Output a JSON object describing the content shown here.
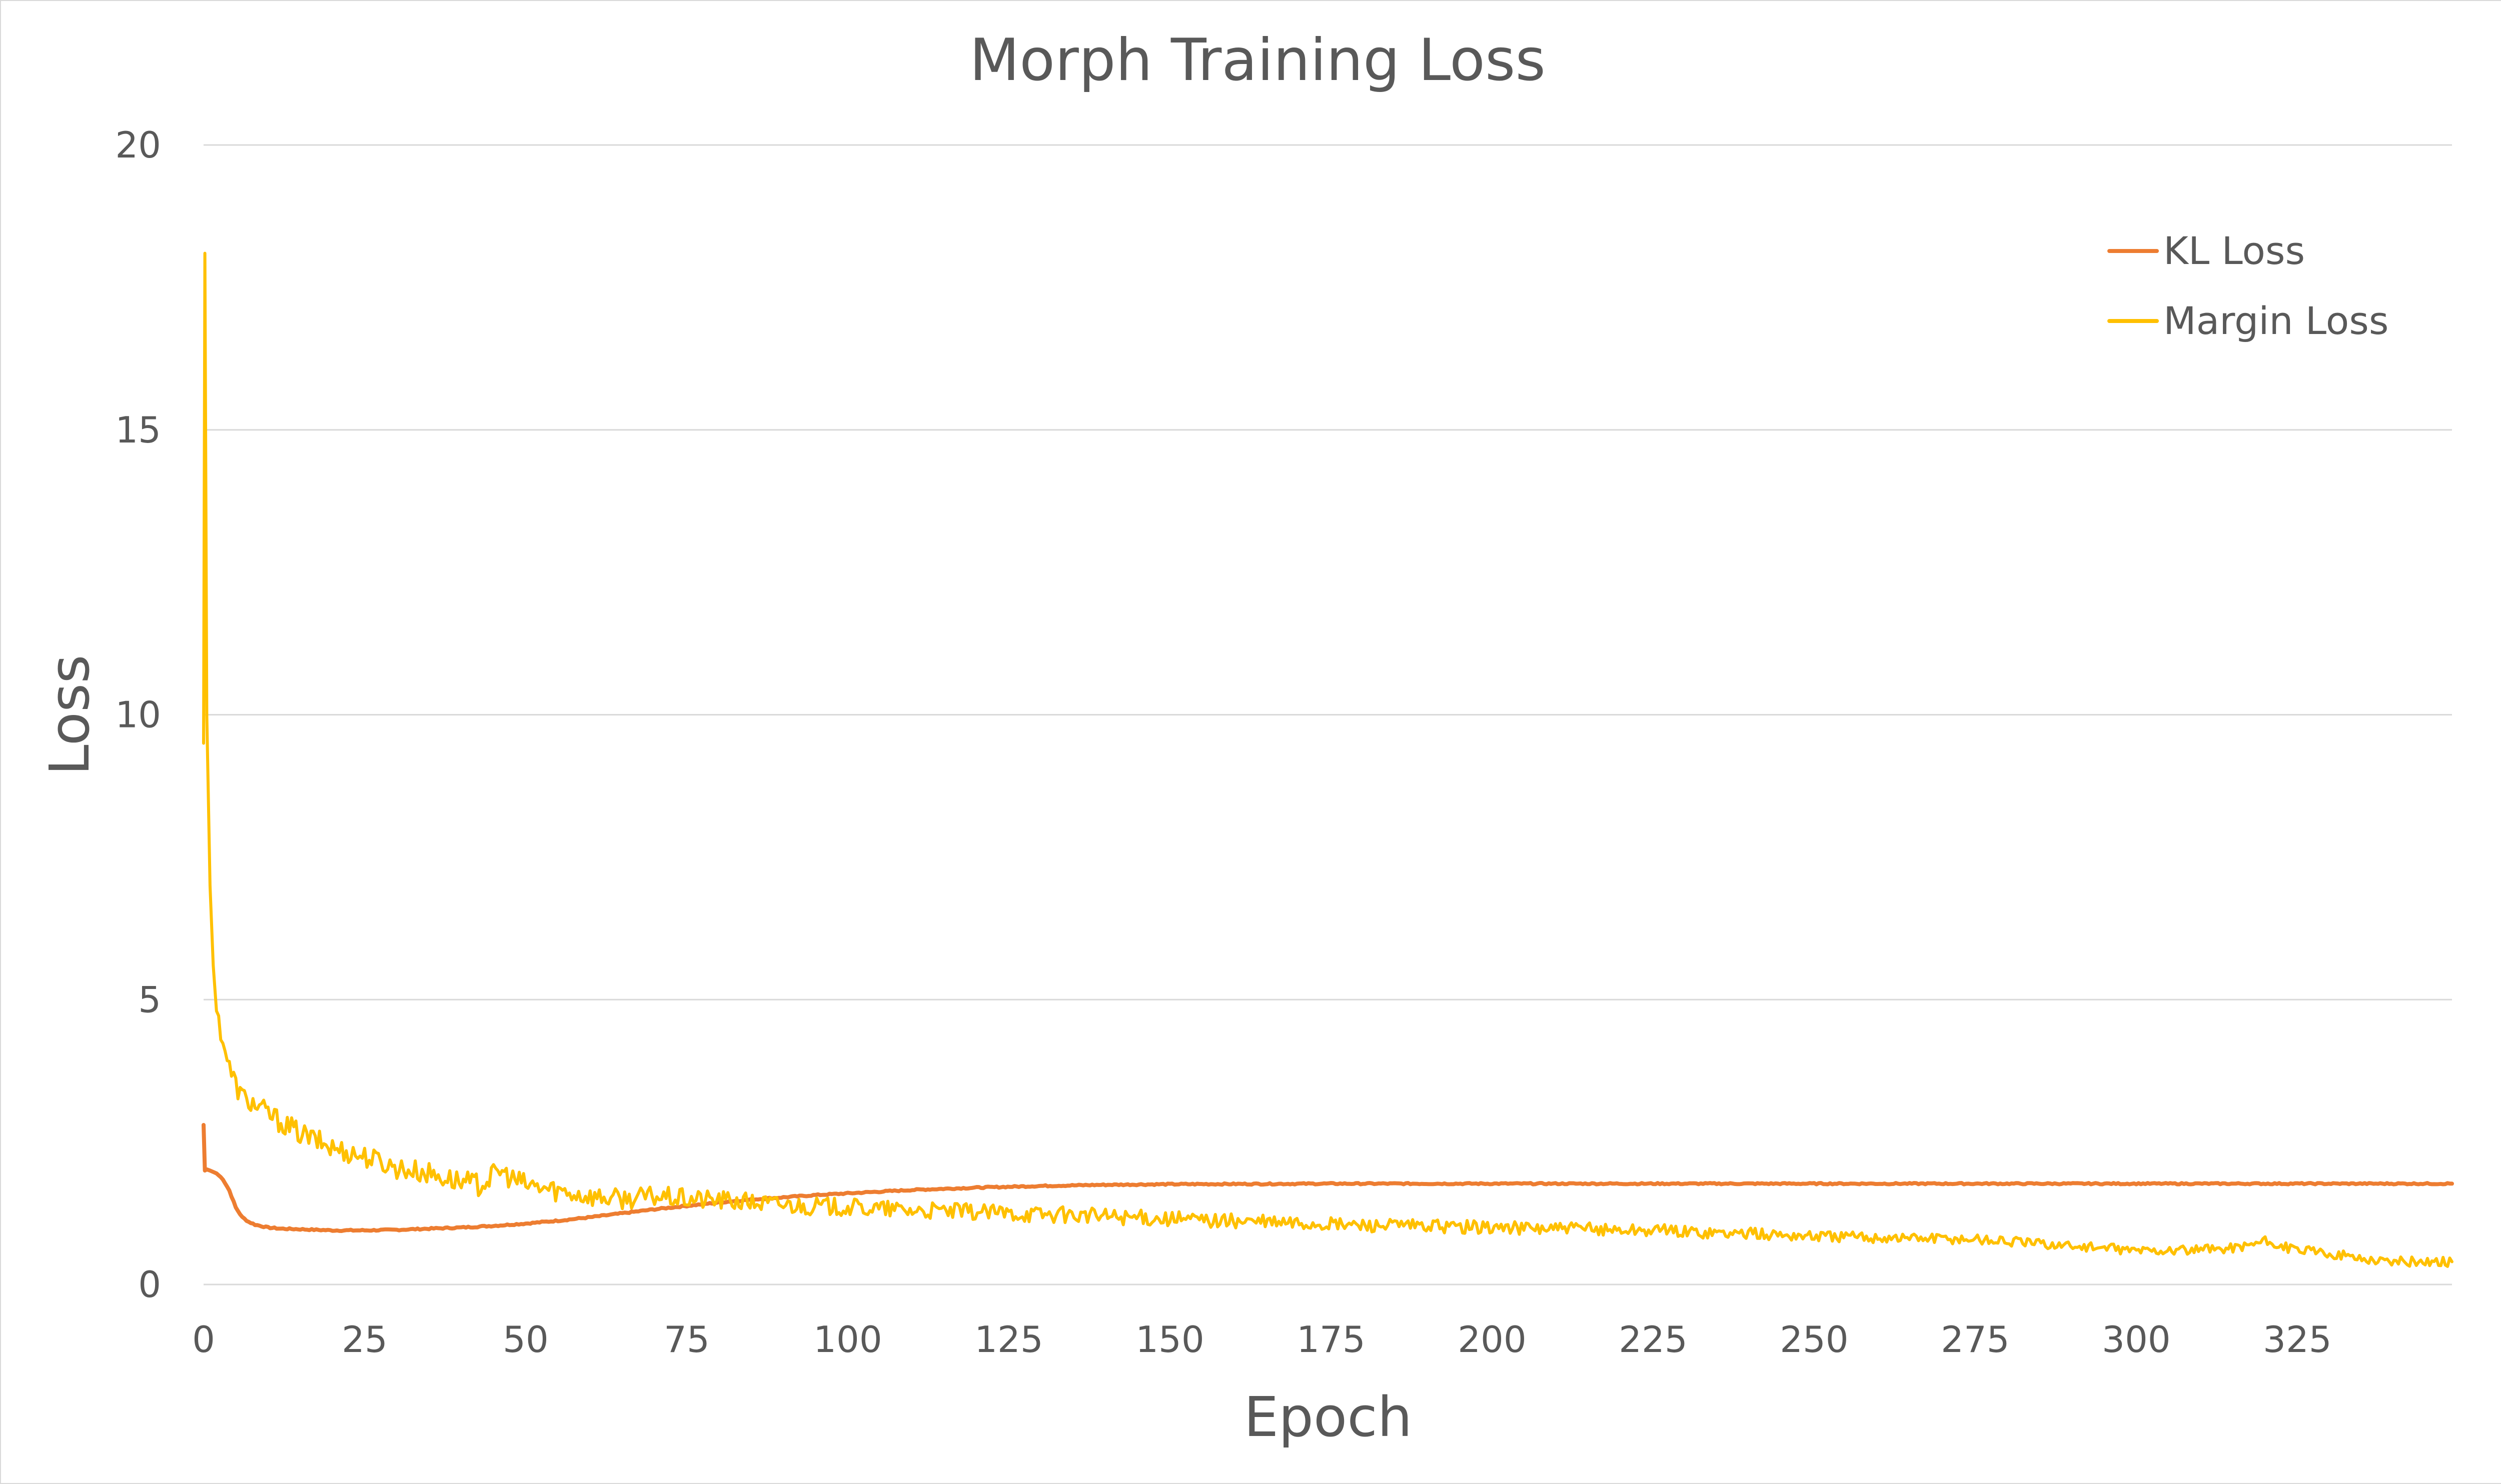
{
  "chart_data": {
    "type": "line",
    "title": "Morph Training Loss",
    "xlabel": "Epoch",
    "ylabel": "Loss",
    "xlim": [
      0,
      349
    ],
    "ylim": [
      0,
      20
    ],
    "x_ticks": [
      "0",
      "25",
      "50",
      "75",
      "100",
      "125",
      "150",
      "175",
      "200",
      "225",
      "250",
      "275",
      "300",
      "325"
    ],
    "y_ticks": [
      "0",
      "5",
      "10",
      "15",
      "20"
    ],
    "grid": true,
    "legend_position": "top-right",
    "series": [
      {
        "name": "KL Loss",
        "color": "#ED7D31",
        "x": [
          0,
          0.2,
          0.5,
          1,
          2,
          3,
          4,
          5,
          6,
          7,
          8,
          10,
          12,
          15,
          20,
          25,
          30,
          35,
          40,
          45,
          50,
          55,
          60,
          65,
          70,
          75,
          80,
          85,
          90,
          95,
          100,
          110,
          120,
          130,
          140,
          150,
          175,
          200,
          225,
          250,
          275,
          300,
          325,
          349
        ],
        "values": [
          2.8,
          2.0,
          2.02,
          2.0,
          1.95,
          1.85,
          1.65,
          1.35,
          1.18,
          1.1,
          1.05,
          1.0,
          0.98,
          0.97,
          0.95,
          0.95,
          0.96,
          0.98,
          1.0,
          1.03,
          1.07,
          1.12,
          1.18,
          1.25,
          1.32,
          1.38,
          1.44,
          1.49,
          1.53,
          1.57,
          1.6,
          1.66,
          1.7,
          1.73,
          1.75,
          1.76,
          1.77,
          1.77,
          1.77,
          1.77,
          1.77,
          1.77,
          1.77,
          1.77
        ]
      },
      {
        "name": "Margin Loss",
        "color": "#FFC000",
        "x": [
          0,
          0.2,
          0.5,
          1,
          1.5,
          2,
          3,
          4,
          5,
          6,
          8,
          10,
          12,
          15,
          18,
          20,
          25,
          30,
          35,
          40,
          43,
          46,
          48,
          50,
          55,
          60,
          65,
          70,
          75,
          80,
          90,
          100,
          110,
          125,
          140,
          150,
          175,
          200,
          225,
          250,
          275,
          300,
          310,
          315,
          320,
          325,
          330,
          335,
          340,
          349
        ],
        "values": [
          9.5,
          18.1,
          10.0,
          7.0,
          5.6,
          4.8,
          4.3,
          3.8,
          3.5,
          3.3,
          3.15,
          3.0,
          2.85,
          2.65,
          2.5,
          2.4,
          2.25,
          2.05,
          1.95,
          1.8,
          1.75,
          2.0,
          1.85,
          1.75,
          1.65,
          1.55,
          1.5,
          1.55,
          1.5,
          1.48,
          1.4,
          1.35,
          1.3,
          1.25,
          1.2,
          1.15,
          1.05,
          1.0,
          0.95,
          0.85,
          0.8,
          0.6,
          0.6,
          0.65,
          0.75,
          0.6,
          0.55,
          0.45,
          0.4,
          0.4
        ]
      }
    ]
  }
}
